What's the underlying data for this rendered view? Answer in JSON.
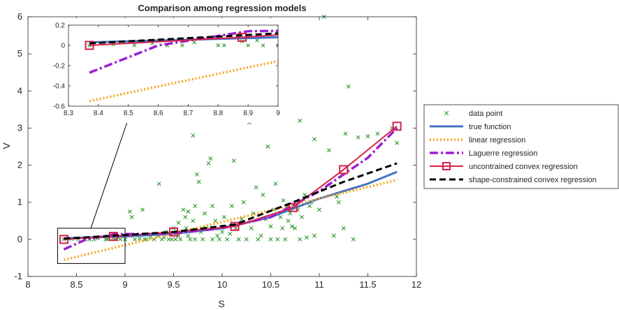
{
  "chart_data": {
    "type": "line",
    "title": "Comparison among regression models",
    "xlabel": "S",
    "ylabel": "V",
    "xlim": [
      8,
      12
    ],
    "ylim": [
      -1,
      6
    ],
    "xticks": [
      8,
      8.5,
      9,
      9.5,
      10,
      10.5,
      11,
      11.5,
      12
    ],
    "yticks": [
      -1,
      0,
      1,
      2,
      3,
      4,
      5,
      6
    ],
    "grid": false,
    "legend_position": "right",
    "scatter": {
      "name": "data point",
      "color": "#1f8f1f",
      "points": [
        [
          8.37,
          0
        ],
        [
          8.45,
          0.01
        ],
        [
          8.52,
          0
        ],
        [
          8.58,
          0.02
        ],
        [
          8.63,
          0
        ],
        [
          8.68,
          0
        ],
        [
          8.72,
          0.03
        ],
        [
          8.8,
          0
        ],
        [
          8.82,
          0
        ],
        [
          8.88,
          0.04
        ],
        [
          8.9,
          0
        ],
        [
          8.93,
          0.05
        ],
        [
          8.95,
          0
        ],
        [
          9.0,
          0
        ],
        [
          9.05,
          0.1
        ],
        [
          9.05,
          0.75
        ],
        [
          9.07,
          0.6
        ],
        [
          9.1,
          0
        ],
        [
          9.15,
          0.02
        ],
        [
          9.18,
          0.8
        ],
        [
          9.2,
          0
        ],
        [
          9.22,
          0
        ],
        [
          9.26,
          0.05
        ],
        [
          9.3,
          0
        ],
        [
          9.33,
          0.1
        ],
        [
          9.35,
          1.5
        ],
        [
          9.38,
          0
        ],
        [
          9.4,
          0.05
        ],
        [
          9.42,
          0.2
        ],
        [
          9.45,
          0
        ],
        [
          9.48,
          0
        ],
        [
          9.5,
          0.3
        ],
        [
          9.52,
          0
        ],
        [
          9.55,
          0.1
        ],
        [
          9.55,
          0.45
        ],
        [
          9.57,
          0
        ],
        [
          9.6,
          0.8
        ],
        [
          9.62,
          0.6
        ],
        [
          9.63,
          0.3
        ],
        [
          9.65,
          0.75
        ],
        [
          9.65,
          0.1
        ],
        [
          9.67,
          0
        ],
        [
          9.7,
          2.8
        ],
        [
          9.7,
          0.5
        ],
        [
          9.72,
          0.9
        ],
        [
          9.72,
          0
        ],
        [
          9.74,
          1.75
        ],
        [
          9.76,
          1.55
        ],
        [
          9.78,
          0.2
        ],
        [
          9.8,
          0
        ],
        [
          9.82,
          0.7
        ],
        [
          9.84,
          0.3
        ],
        [
          9.86,
          2.05
        ],
        [
          9.88,
          2.18
        ],
        [
          9.9,
          0.9
        ],
        [
          9.9,
          0
        ],
        [
          9.93,
          0.5
        ],
        [
          9.95,
          0.1
        ],
        [
          9.97,
          0
        ],
        [
          10.0,
          0.2
        ],
        [
          10.02,
          0.6
        ],
        [
          10.05,
          0
        ],
        [
          10.08,
          0.15
        ],
        [
          10.1,
          0.9
        ],
        [
          10.12,
          2.12
        ],
        [
          10.14,
          0.3
        ],
        [
          10.17,
          0
        ],
        [
          10.2,
          0.55
        ],
        [
          10.22,
          1.0
        ],
        [
          10.25,
          0
        ],
        [
          10.28,
          3.15
        ],
        [
          10.3,
          0.3
        ],
        [
          10.32,
          0.7
        ],
        [
          10.35,
          1.4
        ],
        [
          10.37,
          0
        ],
        [
          10.4,
          0.1
        ],
        [
          10.42,
          1.2
        ],
        [
          10.45,
          0.55
        ],
        [
          10.47,
          2.5
        ],
        [
          10.5,
          0.35
        ],
        [
          10.5,
          0
        ],
        [
          10.53,
          0.8
        ],
        [
          10.55,
          1.5
        ],
        [
          10.57,
          0
        ],
        [
          10.6,
          0.6
        ],
        [
          10.62,
          0.3
        ],
        [
          10.63,
          1.05
        ],
        [
          10.65,
          0
        ],
        [
          10.67,
          0.9
        ],
        [
          10.68,
          0.5
        ],
        [
          10.7,
          0.7
        ],
        [
          10.72,
          0.35
        ],
        [
          10.73,
          0.85
        ],
        [
          10.75,
          0.3
        ],
        [
          10.78,
          0.8
        ],
        [
          10.8,
          0
        ],
        [
          10.8,
          3.2
        ],
        [
          10.82,
          0.6
        ],
        [
          10.85,
          1.2
        ],
        [
          10.87,
          0.05
        ],
        [
          10.9,
          0.9
        ],
        [
          10.92,
          1.0
        ],
        [
          10.95,
          0.1
        ],
        [
          10.95,
          2.7
        ],
        [
          11.0,
          0.8
        ],
        [
          11.05,
          6.0
        ],
        [
          11.1,
          2.4
        ],
        [
          11.15,
          0.1
        ],
        [
          11.18,
          1.15
        ],
        [
          11.2,
          1.0
        ],
        [
          11.25,
          0.3
        ],
        [
          11.27,
          2.85
        ],
        [
          11.3,
          4.12
        ],
        [
          11.35,
          0
        ],
        [
          11.4,
          2.75
        ],
        [
          11.5,
          2.78
        ],
        [
          11.6,
          2.85
        ],
        [
          11.75,
          3.0
        ],
        [
          11.8,
          2.6
        ]
      ]
    },
    "series": [
      {
        "name": "true function",
        "color": "#4472c4",
        "dash": "none",
        "width": 3,
        "x": [
          8.37,
          9.0,
          9.5,
          10.0,
          10.5,
          11.0,
          11.5,
          11.8
        ],
        "y": [
          0.03,
          0.08,
          0.15,
          0.3,
          0.6,
          1.1,
          1.5,
          1.82
        ]
      },
      {
        "name": "linear regression",
        "color": "#f5a51b",
        "dash": "2 3",
        "width": 3.5,
        "x": [
          8.37,
          11.8
        ],
        "y": [
          -0.55,
          1.6
        ]
      },
      {
        "name": "Laguerre regression",
        "color": "#9b1fd0",
        "dash": "12 4 3 4",
        "width": 3.5,
        "x": [
          8.37,
          8.6,
          8.9,
          9.5,
          10.0,
          10.5,
          11.0,
          11.5,
          11.8
        ],
        "y": [
          -0.27,
          0.0,
          0.14,
          0.16,
          0.3,
          0.6,
          1.3,
          2.2,
          3.0
        ]
      },
      {
        "name": "uncontrained convex regression",
        "color": "#d4204a",
        "dash": "none",
        "width": 2,
        "markers": true,
        "x": [
          8.37,
          8.88,
          9.5,
          10.13,
          10.73,
          11.25,
          11.8
        ],
        "y": [
          0.0,
          0.08,
          0.2,
          0.35,
          0.86,
          1.88,
          3.05
        ]
      },
      {
        "name": "shape-constrained convex regression",
        "color": "#000000",
        "dash": "9 5",
        "width": 3,
        "x": [
          8.37,
          8.88,
          9.5,
          10.13,
          10.73,
          11.25,
          11.8
        ],
        "y": [
          0.02,
          0.1,
          0.2,
          0.4,
          1.0,
          1.55,
          2.05
        ]
      }
    ],
    "inset": {
      "xlim": [
        8.3,
        9
      ],
      "ylim": [
        -0.6,
        0.2
      ],
      "xticks": [
        8.3,
        8.4,
        8.5,
        8.6,
        8.7,
        8.8,
        8.9,
        9
      ],
      "yticks": [
        -0.6,
        -0.4,
        -0.2,
        0,
        0.2
      ],
      "zoom_region": {
        "x": [
          8.37,
          9.0
        ],
        "y": [
          -0.65,
          0.3
        ]
      },
      "arrow_to": [
        8.5,
        -0.6
      ]
    }
  }
}
